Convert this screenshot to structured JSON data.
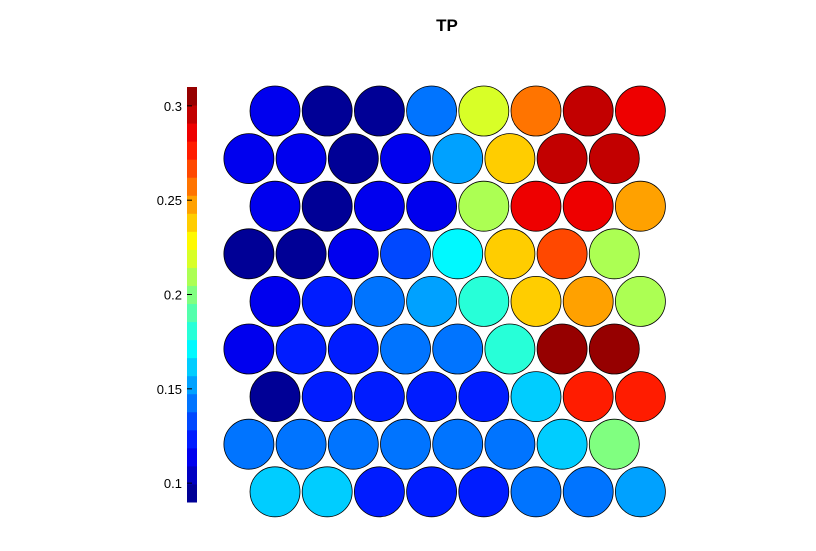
{
  "chart_data": {
    "type": "heatmap",
    "title": "TP",
    "layout": "hexagonal",
    "rows": 9,
    "cols": 8,
    "colorbar": {
      "min": 0.09,
      "max": 0.31,
      "ticks": [
        0.1,
        0.15,
        0.2,
        0.25,
        0.3
      ],
      "tick_labels": [
        "0.1",
        "0.15",
        "0.2",
        "0.25",
        "0.3"
      ],
      "levels": 23,
      "colormap": "jet",
      "position": "left"
    },
    "values": [
      [
        0.11,
        0.097,
        0.097,
        0.14,
        0.22,
        0.257,
        0.292,
        0.285
      ],
      [
        0.11,
        0.11,
        0.097,
        0.115,
        0.152,
        0.235,
        0.297,
        0.297
      ],
      [
        0.11,
        0.097,
        0.11,
        0.11,
        0.205,
        0.285,
        0.285,
        0.25
      ],
      [
        0.097,
        0.097,
        0.115,
        0.13,
        0.17,
        0.235,
        0.265,
        0.208
      ],
      [
        0.115,
        0.125,
        0.14,
        0.152,
        0.18,
        0.235,
        0.25,
        0.208
      ],
      [
        0.115,
        0.125,
        0.125,
        0.14,
        0.14,
        0.18,
        0.308,
        0.308
      ],
      [
        0.097,
        0.125,
        0.125,
        0.125,
        0.125,
        0.158,
        0.28,
        0.28
      ],
      [
        0.14,
        0.14,
        0.14,
        0.14,
        0.14,
        0.14,
        0.158,
        0.2
      ],
      [
        0.158,
        0.158,
        0.12,
        0.125,
        0.12,
        0.14,
        0.14,
        0.152
      ]
    ]
  }
}
